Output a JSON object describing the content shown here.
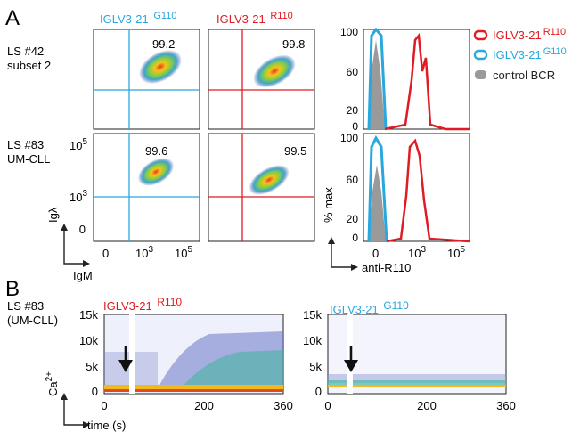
{
  "panels": {
    "a": "A",
    "b": "B"
  },
  "colors": {
    "blue": "#29a8df",
    "red": "#e01b23",
    "grey": "#9a9a9a",
    "axis": "#222222"
  },
  "panel_a": {
    "samples": [
      {
        "id": "LS #42",
        "sub": "subset 2"
      },
      {
        "id": "LS #83",
        "sub": "UM-CLL"
      }
    ],
    "constructs": [
      {
        "name": "IGLV3-21",
        "sup": "G110",
        "color": "blue"
      },
      {
        "name": "IGLV3-21",
        "sup": "R110",
        "color": "red"
      }
    ],
    "percentages": [
      "99.2",
      "99.8",
      "99.6",
      "99.5"
    ],
    "xlabel": "IgM",
    "ylabel": "Igλ",
    "ticks": {
      "zero": "0",
      "mid": "10",
      "mid_exp": "3",
      "hi": "10",
      "hi_exp": "5"
    },
    "hist": {
      "ylabel": "% max",
      "xlabel": "anti-R110",
      "yticks": [
        "100",
        "60",
        "20",
        "0"
      ],
      "legend": [
        {
          "label": "IGLV3-21",
          "sup": "R110",
          "color": "red"
        },
        {
          "label": "IGLV3-21",
          "sup": "G110",
          "color": "blue"
        },
        {
          "label": "control BCR",
          "sup": "",
          "color": "grey"
        }
      ]
    }
  },
  "panel_b": {
    "sample": {
      "id": "LS #83",
      "sub": "(UM-CLL)"
    },
    "ylabel": "Ca",
    "ylabel_sup": "2+",
    "xlabel": "time (s)",
    "yticks": [
      "15k",
      "10k",
      "5k",
      "0"
    ],
    "xticks": [
      "0",
      "200",
      "360"
    ],
    "plots": [
      {
        "name": "IGLV3-21",
        "sup": "R110",
        "color": "red"
      },
      {
        "name": "IGLV3-21",
        "sup": "G110",
        "color": "blue"
      }
    ]
  }
}
